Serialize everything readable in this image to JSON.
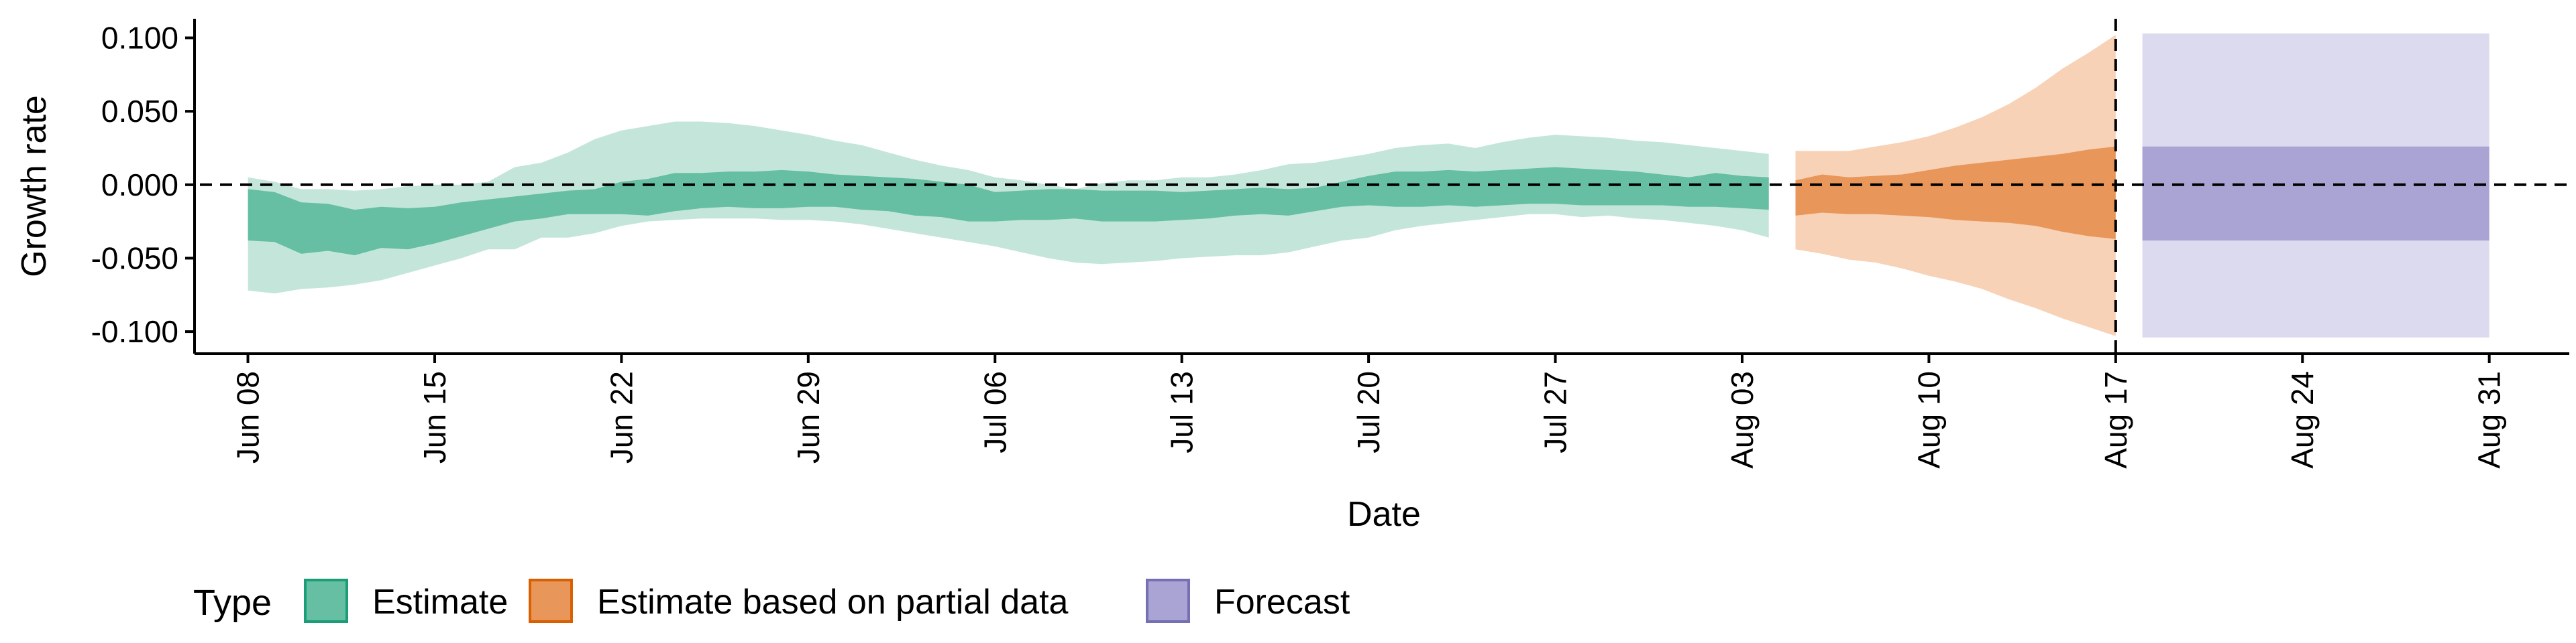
{
  "chart_data": {
    "type": "area",
    "title": "",
    "xlabel": "Date",
    "ylabel": "Growth rate",
    "ylim": [
      -0.115,
      0.113
    ],
    "xlim": [
      "2020-06-06",
      "2020-09-03"
    ],
    "grid": false,
    "y_ticks": [
      "0.100",
      "0.050",
      "0.000",
      "-0.050",
      "-0.100"
    ],
    "y_tick_values": [
      0.1,
      0.05,
      0.0,
      -0.05,
      -0.1
    ],
    "x_ticks": [
      "Jun 08",
      "Jun 15",
      "Jun 22",
      "Jun 29",
      "Jul 06",
      "Jul 13",
      "Jul 20",
      "Jul 27",
      "Aug 03",
      "Aug 10",
      "Aug 17",
      "Aug 24",
      "Aug 31"
    ],
    "x_tick_dates": [
      "2020-06-08",
      "2020-06-15",
      "2020-06-22",
      "2020-06-29",
      "2020-07-06",
      "2020-07-13",
      "2020-07-20",
      "2020-07-27",
      "2020-08-03",
      "2020-08-10",
      "2020-08-17",
      "2020-08-24",
      "2020-08-31"
    ],
    "reference_lines": [
      {
        "orientation": "horizontal",
        "value": 0.0,
        "style": "dashed"
      },
      {
        "orientation": "vertical",
        "value": "2020-08-17",
        "style": "dashed"
      }
    ],
    "legend": {
      "title": "Type",
      "position": "bottom-left",
      "entries": [
        "Estimate",
        "Estimate based on partial data",
        "Forecast"
      ]
    },
    "series": [
      {
        "name": "Estimate",
        "fill_dark": "#66bfa2",
        "fill_light": "#c4e6da",
        "border": "#1b9e77",
        "x": [
          "2020-06-08",
          "2020-06-09",
          "2020-06-10",
          "2020-06-11",
          "2020-06-12",
          "2020-06-13",
          "2020-06-14",
          "2020-06-15",
          "2020-06-16",
          "2020-06-17",
          "2020-06-18",
          "2020-06-19",
          "2020-06-20",
          "2020-06-21",
          "2020-06-22",
          "2020-06-23",
          "2020-06-24",
          "2020-06-25",
          "2020-06-26",
          "2020-06-27",
          "2020-06-28",
          "2020-06-29",
          "2020-06-30",
          "2020-07-01",
          "2020-07-02",
          "2020-07-03",
          "2020-07-04",
          "2020-07-05",
          "2020-07-06",
          "2020-07-07",
          "2020-07-08",
          "2020-07-09",
          "2020-07-10",
          "2020-07-11",
          "2020-07-12",
          "2020-07-13",
          "2020-07-14",
          "2020-07-15",
          "2020-07-16",
          "2020-07-17",
          "2020-07-18",
          "2020-07-19",
          "2020-07-20",
          "2020-07-21",
          "2020-07-22",
          "2020-07-23",
          "2020-07-24",
          "2020-07-25",
          "2020-07-26",
          "2020-07-27",
          "2020-07-28",
          "2020-07-29",
          "2020-07-30",
          "2020-07-31",
          "2020-08-01",
          "2020-08-02",
          "2020-08-03",
          "2020-08-04"
        ],
        "lower_90": [
          -0.072,
          -0.074,
          -0.071,
          -0.07,
          -0.068,
          -0.065,
          -0.06,
          -0.055,
          -0.05,
          -0.044,
          -0.044,
          -0.036,
          -0.036,
          -0.033,
          -0.028,
          -0.025,
          -0.024,
          -0.023,
          -0.023,
          -0.023,
          -0.024,
          -0.024,
          -0.025,
          -0.027,
          -0.03,
          -0.033,
          -0.036,
          -0.039,
          -0.042,
          -0.046,
          -0.05,
          -0.053,
          -0.054,
          -0.053,
          -0.052,
          -0.05,
          -0.049,
          -0.048,
          -0.048,
          -0.046,
          -0.042,
          -0.038,
          -0.036,
          -0.031,
          -0.028,
          -0.026,
          -0.024,
          -0.022,
          -0.02,
          -0.02,
          -0.022,
          -0.021,
          -0.023,
          -0.024,
          -0.026,
          -0.028,
          -0.031,
          -0.036
        ],
        "lower_50": [
          -0.038,
          -0.039,
          -0.047,
          -0.045,
          -0.048,
          -0.043,
          -0.044,
          -0.04,
          -0.035,
          -0.03,
          -0.025,
          -0.023,
          -0.02,
          -0.02,
          -0.02,
          -0.021,
          -0.018,
          -0.016,
          -0.015,
          -0.016,
          -0.016,
          -0.015,
          -0.015,
          -0.017,
          -0.018,
          -0.021,
          -0.022,
          -0.025,
          -0.025,
          -0.024,
          -0.024,
          -0.023,
          -0.025,
          -0.025,
          -0.025,
          -0.024,
          -0.023,
          -0.021,
          -0.02,
          -0.021,
          -0.018,
          -0.015,
          -0.014,
          -0.015,
          -0.015,
          -0.014,
          -0.015,
          -0.014,
          -0.013,
          -0.013,
          -0.014,
          -0.014,
          -0.014,
          -0.014,
          -0.015,
          -0.015,
          -0.016,
          -0.017
        ],
        "upper_50": [
          -0.003,
          -0.005,
          -0.012,
          -0.013,
          -0.017,
          -0.015,
          -0.016,
          -0.015,
          -0.012,
          -0.01,
          -0.008,
          -0.006,
          -0.004,
          -0.003,
          0.002,
          0.004,
          0.008,
          0.008,
          0.009,
          0.009,
          0.01,
          0.009,
          0.007,
          0.006,
          0.005,
          0.004,
          0.002,
          0.0,
          -0.005,
          -0.004,
          -0.003,
          -0.003,
          -0.004,
          -0.004,
          -0.004,
          -0.005,
          -0.004,
          -0.003,
          -0.002,
          -0.003,
          -0.002,
          0.002,
          0.006,
          0.009,
          0.009,
          0.01,
          0.009,
          0.01,
          0.011,
          0.012,
          0.011,
          0.01,
          0.009,
          0.007,
          0.005,
          0.008,
          0.006,
          0.005
        ],
        "upper_90": [
          0.005,
          0.002,
          -0.003,
          -0.003,
          -0.004,
          -0.003,
          -0.001,
          0.0,
          0.0,
          0.002,
          0.012,
          0.015,
          0.022,
          0.031,
          0.037,
          0.04,
          0.043,
          0.043,
          0.042,
          0.04,
          0.037,
          0.034,
          0.03,
          0.027,
          0.022,
          0.017,
          0.013,
          0.01,
          0.005,
          0.003,
          0.0,
          -0.003,
          0.001,
          0.003,
          0.003,
          0.005,
          0.005,
          0.007,
          0.01,
          0.014,
          0.015,
          0.018,
          0.021,
          0.025,
          0.027,
          0.028,
          0.025,
          0.029,
          0.032,
          0.034,
          0.033,
          0.032,
          0.03,
          0.029,
          0.027,
          0.025,
          0.023,
          0.021
        ]
      },
      {
        "name": "Estimate based on partial data",
        "fill_dark": "#e8965a",
        "fill_light": "#f7d2b6",
        "border": "#d95f02",
        "x": [
          "2020-08-05",
          "2020-08-06",
          "2020-08-07",
          "2020-08-08",
          "2020-08-09",
          "2020-08-10",
          "2020-08-11",
          "2020-08-12",
          "2020-08-13",
          "2020-08-14",
          "2020-08-15",
          "2020-08-16",
          "2020-08-17"
        ],
        "lower_90": [
          -0.044,
          -0.047,
          -0.051,
          -0.053,
          -0.057,
          -0.062,
          -0.066,
          -0.071,
          -0.078,
          -0.084,
          -0.091,
          -0.097,
          -0.103
        ],
        "lower_50": [
          -0.021,
          -0.019,
          -0.02,
          -0.02,
          -0.021,
          -0.022,
          -0.024,
          -0.025,
          -0.026,
          -0.028,
          -0.032,
          -0.035,
          -0.037
        ],
        "upper_50": [
          0.003,
          0.007,
          0.005,
          0.006,
          0.007,
          0.01,
          0.013,
          0.015,
          0.017,
          0.019,
          0.021,
          0.024,
          0.026
        ],
        "upper_90": [
          0.023,
          0.023,
          0.023,
          0.026,
          0.029,
          0.033,
          0.039,
          0.046,
          0.055,
          0.066,
          0.079,
          0.09,
          0.102
        ]
      },
      {
        "name": "Forecast",
        "fill_dark": "#a9a4d3",
        "fill_light": "#dcdaee",
        "border": "#7570b3",
        "x": [
          "2020-08-18",
          "2020-08-31"
        ],
        "lower_90": [
          -0.104,
          -0.104
        ],
        "lower_50": [
          -0.038,
          -0.038
        ],
        "upper_50": [
          0.026,
          0.026
        ],
        "upper_90": [
          0.103,
          0.103
        ]
      }
    ]
  }
}
